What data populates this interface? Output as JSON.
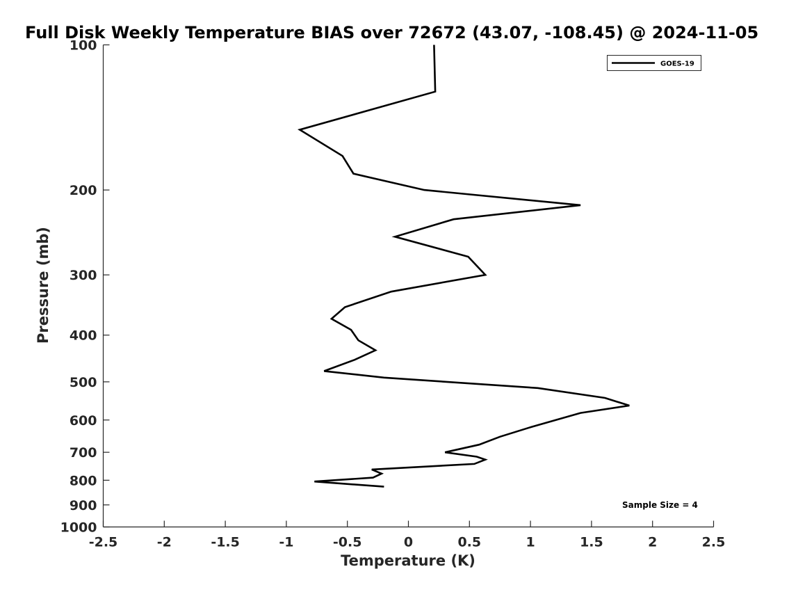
{
  "chart_data": {
    "type": "line",
    "title": "Full Disk Weekly Temperature BIAS over 72672 (43.07, -108.45) @ 2024-11-05",
    "xlabel": "Temperature (K)",
    "ylabel": "Pressure (mb)",
    "xlim": [
      -2.5,
      2.5
    ],
    "ylim": [
      100,
      1000
    ],
    "y_scale": "log",
    "y_reversed": true,
    "xticks": [
      "-2.5",
      "-2",
      "-1.5",
      "-1",
      "-0.5",
      "0",
      "0.5",
      "1",
      "1.5",
      "2",
      "2.5"
    ],
    "yticks": [
      "100",
      "200",
      "300",
      "400",
      "500",
      "600",
      "700",
      "800",
      "900",
      "1000"
    ],
    "grid": false,
    "legend_position": "top-right",
    "series": [
      {
        "name": "GOES-19",
        "color": "#000000",
        "points": [
          {
            "x": 0.21,
            "p": 100
          },
          {
            "x": 0.22,
            "p": 125
          },
          {
            "x": -0.89,
            "p": 150
          },
          {
            "x": -0.54,
            "p": 170
          },
          {
            "x": -0.45,
            "p": 185
          },
          {
            "x": 0.13,
            "p": 200
          },
          {
            "x": 1.41,
            "p": 215
          },
          {
            "x": 0.37,
            "p": 230
          },
          {
            "x": -0.11,
            "p": 250
          },
          {
            "x": 0.49,
            "p": 275
          },
          {
            "x": 0.63,
            "p": 300
          },
          {
            "x": -0.14,
            "p": 325
          },
          {
            "x": -0.52,
            "p": 350
          },
          {
            "x": -0.63,
            "p": 370
          },
          {
            "x": -0.47,
            "p": 390
          },
          {
            "x": -0.41,
            "p": 410
          },
          {
            "x": -0.27,
            "p": 430
          },
          {
            "x": -0.44,
            "p": 450
          },
          {
            "x": -0.69,
            "p": 475
          },
          {
            "x": -0.2,
            "p": 490
          },
          {
            "x": 1.06,
            "p": 515
          },
          {
            "x": 1.61,
            "p": 540
          },
          {
            "x": 1.81,
            "p": 560
          },
          {
            "x": 1.41,
            "p": 580
          },
          {
            "x": 1.01,
            "p": 620
          },
          {
            "x": 0.75,
            "p": 650
          },
          {
            "x": 0.58,
            "p": 675
          },
          {
            "x": 0.3,
            "p": 700
          },
          {
            "x": 0.56,
            "p": 715
          },
          {
            "x": 0.63,
            "p": 725
          },
          {
            "x": 0.54,
            "p": 740
          },
          {
            "x": -0.3,
            "p": 760
          },
          {
            "x": -0.22,
            "p": 775
          },
          {
            "x": -0.29,
            "p": 790
          },
          {
            "x": -0.77,
            "p": 805
          },
          {
            "x": -0.2,
            "p": 825
          }
        ]
      }
    ],
    "annotations": [
      "Sample Size = 4"
    ]
  }
}
